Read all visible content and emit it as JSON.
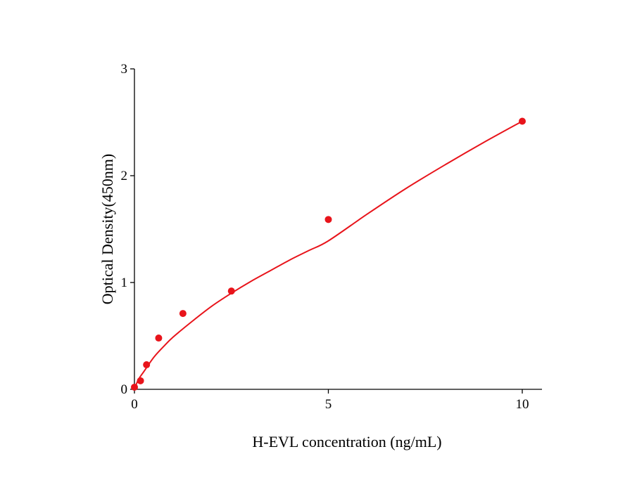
{
  "chart_data": {
    "type": "scatter",
    "title": "",
    "xlabel": "H-EVL concentration (ng/mL)",
    "ylabel": "Optical Density(450nm)",
    "xlim": [
      0,
      10.5
    ],
    "ylim": [
      0,
      3
    ],
    "xticks": [
      0,
      5,
      10
    ],
    "yticks": [
      0,
      1,
      2,
      3
    ],
    "grid": false,
    "legend": "none",
    "color": "#e8141b",
    "series": [
      {
        "x": [
          0,
          0.156,
          0.312,
          0.625,
          1.25,
          2.5,
          5,
          10
        ],
        "y": [
          0.02,
          0.08,
          0.23,
          0.48,
          0.71,
          0.92,
          1.59,
          2.51
        ]
      }
    ],
    "fit_curve": {
      "x": [
        0,
        0.1,
        0.25,
        0.5,
        0.75,
        1,
        1.5,
        2,
        2.5,
        3,
        3.5,
        4,
        4.5,
        5,
        6,
        7,
        8,
        9,
        10
      ],
      "y": [
        0.0,
        0.09,
        0.17,
        0.3,
        0.4,
        0.49,
        0.64,
        0.78,
        0.9,
        1.01,
        1.11,
        1.21,
        1.3,
        1.39,
        1.64,
        1.88,
        2.1,
        2.31,
        2.51
      ]
    }
  }
}
